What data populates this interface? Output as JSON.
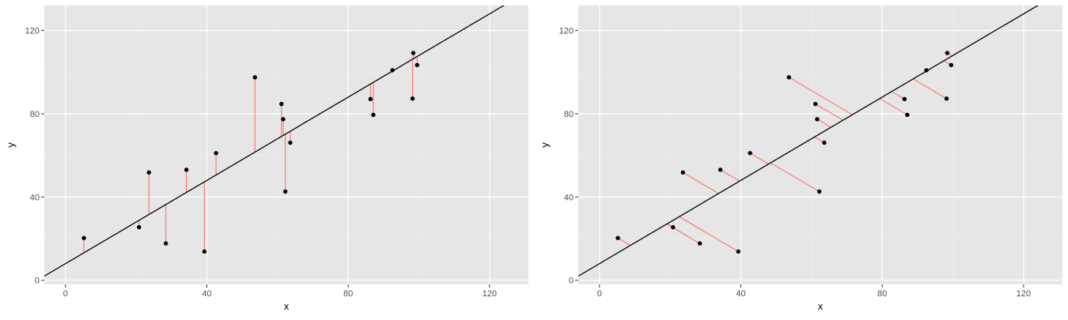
{
  "colors": {
    "panel_bg": "#e6e6e6",
    "grid_major": "#ffffff",
    "grid_minor": "#f0f0f0",
    "point": "#000000",
    "fit_line": "#000000",
    "residual": "#f8766d",
    "tick_text": "#4d4d4d",
    "axis_title": "#000000"
  },
  "chart_data": [
    {
      "type": "scatter",
      "title": "",
      "xlabel": "x",
      "ylabel": "y",
      "xlim": [
        -6,
        131
      ],
      "ylim": [
        -2,
        132
      ],
      "x_ticks": [
        0,
        40,
        80,
        120
      ],
      "x_tick_labels": [
        "0",
        "40",
        "80",
        "120"
      ],
      "y_ticks": [
        0,
        40,
        80,
        120
      ],
      "y_tick_labels": [
        "0",
        "40",
        "80",
        "120"
      ],
      "grid": true,
      "legend": "none",
      "fit_line": {
        "intercept": 8,
        "slope": 1.0
      },
      "residuals": "vertical",
      "points": [
        {
          "x": 5.2,
          "y": 20.3
        },
        {
          "x": 20.8,
          "y": 25.5
        },
        {
          "x": 23.6,
          "y": 51.8
        },
        {
          "x": 28.4,
          "y": 17.7
        },
        {
          "x": 34.2,
          "y": 53.1
        },
        {
          "x": 39.3,
          "y": 13.8
        },
        {
          "x": 42.6,
          "y": 61.1
        },
        {
          "x": 53.6,
          "y": 97.5
        },
        {
          "x": 61.1,
          "y": 84.7
        },
        {
          "x": 61.6,
          "y": 77.4
        },
        {
          "x": 62.2,
          "y": 42.6
        },
        {
          "x": 63.6,
          "y": 66.1
        },
        {
          "x": 86.3,
          "y": 87.1
        },
        {
          "x": 87.1,
          "y": 79.5
        },
        {
          "x": 92.5,
          "y": 100.9
        },
        {
          "x": 98.2,
          "y": 87.3
        },
        {
          "x": 98.4,
          "y": 109.2
        },
        {
          "x": 99.5,
          "y": 103.4
        }
      ]
    },
    {
      "type": "scatter",
      "title": "",
      "xlabel": "x",
      "ylabel": "y",
      "xlim": [
        -6,
        131
      ],
      "ylim": [
        -2,
        132
      ],
      "x_ticks": [
        0,
        40,
        80,
        120
      ],
      "x_tick_labels": [
        "0",
        "40",
        "80",
        "120"
      ],
      "y_ticks": [
        0,
        40,
        80,
        120
      ],
      "y_tick_labels": [
        "0",
        "40",
        "80",
        "120"
      ],
      "grid": true,
      "legend": "none",
      "fit_line": {
        "intercept": 8,
        "slope": 1.0
      },
      "residuals": "perpendicular",
      "points": [
        {
          "x": 5.2,
          "y": 20.3
        },
        {
          "x": 20.8,
          "y": 25.5
        },
        {
          "x": 23.6,
          "y": 51.8
        },
        {
          "x": 28.4,
          "y": 17.7
        },
        {
          "x": 34.2,
          "y": 53.1
        },
        {
          "x": 39.3,
          "y": 13.8
        },
        {
          "x": 42.6,
          "y": 61.1
        },
        {
          "x": 53.6,
          "y": 97.5
        },
        {
          "x": 61.1,
          "y": 84.7
        },
        {
          "x": 61.6,
          "y": 77.4
        },
        {
          "x": 62.2,
          "y": 42.6
        },
        {
          "x": 63.6,
          "y": 66.1
        },
        {
          "x": 86.3,
          "y": 87.1
        },
        {
          "x": 87.1,
          "y": 79.5
        },
        {
          "x": 92.5,
          "y": 100.9
        },
        {
          "x": 98.2,
          "y": 87.3
        },
        {
          "x": 98.4,
          "y": 109.2
        },
        {
          "x": 99.5,
          "y": 103.4
        }
      ]
    }
  ]
}
